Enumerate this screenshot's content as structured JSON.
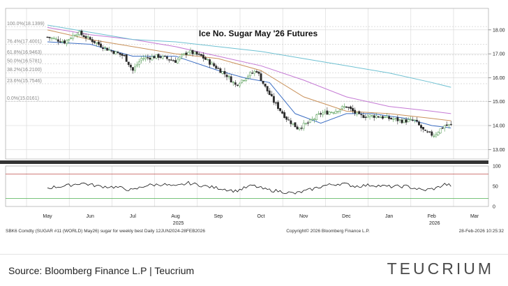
{
  "chart_data": {
    "type": "candlestick",
    "title": "Ice No. Sugar May '26 Futures",
    "price_axis": {
      "ticks": [
        "18.00",
        "17.00",
        "16.00",
        "15.00",
        "14.00",
        "13.00"
      ],
      "values": [
        18,
        17,
        16,
        15,
        14,
        13
      ],
      "range": [
        12.6,
        18.9
      ]
    },
    "rsi_axis": {
      "ticks": [
        "100",
        "50",
        "0"
      ],
      "values": [
        100,
        50,
        0
      ],
      "overbought": 80,
      "oversold": 20
    },
    "x_months": [
      "May",
      "Jun",
      "Jul",
      "Aug",
      "Sep",
      "Oct",
      "Nov",
      "Dec",
      "Jan",
      "Feb",
      "Mar"
    ],
    "year_labels": [
      {
        "after": "Aug",
        "label": "2025"
      },
      {
        "after": "Feb",
        "label": "2026"
      }
    ],
    "fib_levels": [
      {
        "label": "100.0%(18.1399)",
        "value": 18.14
      },
      {
        "label": "76.4%(17.4001)",
        "value": 17.4
      },
      {
        "label": "61.8%(16.9463)",
        "value": 16.95
      },
      {
        "label": "50.0%(16.5781)",
        "value": 16.58
      },
      {
        "label": "38.2%(16.2100)",
        "value": 16.21
      },
      {
        "label": "23.6%(15.7546)",
        "value": 15.75
      },
      {
        "label": "0.0%(15.0161)",
        "value": 15.02
      }
    ],
    "close_path": [
      {
        "m": 0.0,
        "v": 17.7
      },
      {
        "m": 0.4,
        "v": 17.5
      },
      {
        "m": 0.7,
        "v": 17.9
      },
      {
        "m": 1.0,
        "v": 17.6
      },
      {
        "m": 1.4,
        "v": 17.2
      },
      {
        "m": 1.8,
        "v": 16.9
      },
      {
        "m": 2.0,
        "v": 16.3
      },
      {
        "m": 2.2,
        "v": 16.8
      },
      {
        "m": 2.6,
        "v": 16.9
      },
      {
        "m": 3.0,
        "v": 16.7
      },
      {
        "m": 3.3,
        "v": 17.1
      },
      {
        "m": 3.6,
        "v": 16.9
      },
      {
        "m": 3.9,
        "v": 16.5
      },
      {
        "m": 4.2,
        "v": 16.1
      },
      {
        "m": 4.4,
        "v": 15.7
      },
      {
        "m": 4.7,
        "v": 16.1
      },
      {
        "m": 4.9,
        "v": 16.3
      },
      {
        "m": 5.1,
        "v": 15.6
      },
      {
        "m": 5.3,
        "v": 15.0
      },
      {
        "m": 5.6,
        "v": 14.3
      },
      {
        "m": 5.85,
        "v": 13.9
      },
      {
        "m": 6.1,
        "v": 14.1
      },
      {
        "m": 6.4,
        "v": 14.5
      },
      {
        "m": 6.7,
        "v": 14.6
      },
      {
        "m": 7.0,
        "v": 14.8
      },
      {
        "m": 7.3,
        "v": 14.4
      },
      {
        "m": 7.7,
        "v": 14.4
      },
      {
        "m": 8.0,
        "v": 14.3
      },
      {
        "m": 8.3,
        "v": 14.2
      },
      {
        "m": 8.6,
        "v": 14.2
      },
      {
        "m": 8.85,
        "v": 13.7
      },
      {
        "m": 9.05,
        "v": 13.6
      },
      {
        "m": 9.3,
        "v": 14.0
      },
      {
        "m": 9.45,
        "v": 14.0
      }
    ],
    "ma_series": [
      {
        "color": "#3d6fc4",
        "points": [
          {
            "m": 0,
            "v": 17.5
          },
          {
            "m": 1,
            "v": 17.4
          },
          {
            "m": 2,
            "v": 16.9
          },
          {
            "m": 3,
            "v": 16.9
          },
          {
            "m": 4,
            "v": 16.3
          },
          {
            "m": 4.6,
            "v": 16.0
          },
          {
            "m": 5.2,
            "v": 15.8
          },
          {
            "m": 5.8,
            "v": 14.5
          },
          {
            "m": 6.4,
            "v": 14.1
          },
          {
            "m": 7,
            "v": 14.5
          },
          {
            "m": 7.6,
            "v": 14.5
          },
          {
            "m": 8.4,
            "v": 14.3
          },
          {
            "m": 9.0,
            "v": 14.0
          },
          {
            "m": 9.45,
            "v": 13.9
          }
        ]
      },
      {
        "color": "#c9915a",
        "points": [
          {
            "m": 0,
            "v": 18.0
          },
          {
            "m": 1,
            "v": 17.6
          },
          {
            "m": 2,
            "v": 17.3
          },
          {
            "m": 3,
            "v": 17.0
          },
          {
            "m": 4,
            "v": 16.8
          },
          {
            "m": 5,
            "v": 16.3
          },
          {
            "m": 6,
            "v": 15.2
          },
          {
            "m": 7,
            "v": 14.6
          },
          {
            "m": 8,
            "v": 14.5
          },
          {
            "m": 9,
            "v": 14.3
          },
          {
            "m": 9.45,
            "v": 14.2
          }
        ]
      },
      {
        "color": "#c478d4",
        "points": [
          {
            "m": 0,
            "v": 18.1
          },
          {
            "m": 1,
            "v": 17.8
          },
          {
            "m": 2,
            "v": 17.6
          },
          {
            "m": 3,
            "v": 17.3
          },
          {
            "m": 4,
            "v": 16.9
          },
          {
            "m": 5,
            "v": 16.5
          },
          {
            "m": 6,
            "v": 15.9
          },
          {
            "m": 7,
            "v": 15.2
          },
          {
            "m": 8,
            "v": 14.8
          },
          {
            "m": 9,
            "v": 14.6
          },
          {
            "m": 9.45,
            "v": 14.5
          }
        ]
      },
      {
        "color": "#6fc1d2",
        "points": [
          {
            "m": 0,
            "v": 18.2
          },
          {
            "m": 1,
            "v": 17.9
          },
          {
            "m": 2,
            "v": 17.6
          },
          {
            "m": 3,
            "v": 17.5
          },
          {
            "m": 4,
            "v": 17.3
          },
          {
            "m": 5,
            "v": 17.1
          },
          {
            "m": 6,
            "v": 16.8
          },
          {
            "m": 7,
            "v": 16.5
          },
          {
            "m": 8,
            "v": 16.2
          },
          {
            "m": 9,
            "v": 15.8
          },
          {
            "m": 9.45,
            "v": 15.6
          }
        ]
      }
    ],
    "rsi_path": [
      {
        "m": 0,
        "v": 46
      },
      {
        "m": 0.5,
        "v": 52
      },
      {
        "m": 0.8,
        "v": 58
      },
      {
        "m": 1.2,
        "v": 50
      },
      {
        "m": 1.6,
        "v": 48
      },
      {
        "m": 2.0,
        "v": 40
      },
      {
        "m": 2.3,
        "v": 52
      },
      {
        "m": 2.7,
        "v": 55
      },
      {
        "m": 3.0,
        "v": 49
      },
      {
        "m": 3.3,
        "v": 58
      },
      {
        "m": 3.7,
        "v": 50
      },
      {
        "m": 4.1,
        "v": 44
      },
      {
        "m": 4.4,
        "v": 38
      },
      {
        "m": 4.8,
        "v": 52
      },
      {
        "m": 5.1,
        "v": 42
      },
      {
        "m": 5.4,
        "v": 38
      },
      {
        "m": 5.8,
        "v": 32
      },
      {
        "m": 6.1,
        "v": 40
      },
      {
        "m": 6.5,
        "v": 52
      },
      {
        "m": 6.9,
        "v": 57
      },
      {
        "m": 7.2,
        "v": 50
      },
      {
        "m": 7.6,
        "v": 53
      },
      {
        "m": 8.0,
        "v": 49
      },
      {
        "m": 8.4,
        "v": 50
      },
      {
        "m": 8.8,
        "v": 40
      },
      {
        "m": 9.1,
        "v": 45
      },
      {
        "m": 9.3,
        "v": 55
      },
      {
        "m": 9.45,
        "v": 52
      }
    ],
    "info_left": "SBK6 Comdty (SUGAR #11 (WORLD) May26) sugar for weekly best Daily 12JUN2024-28FEB2026",
    "info_center": "Copyright© 2026 Bloomberg Finance L.P.",
    "info_right": "28-Feb-2026 10:25:32"
  },
  "footer": {
    "source": "Source: Bloomberg Finance L.P | Teucrium",
    "brand": "TEUCRIUM"
  },
  "colors": {
    "up": "#4f9a4f",
    "down": "#2b2b2b",
    "rsi_line": "#111111",
    "overbought": "#c0504d",
    "oversold": "#4caf50"
  }
}
